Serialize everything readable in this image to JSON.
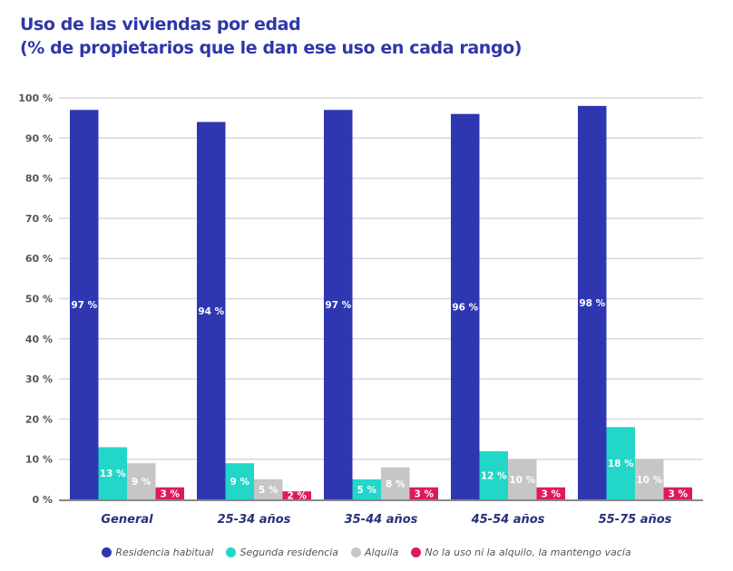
{
  "chart_data": {
    "type": "bar",
    "title": "Uso de las viviendas por edad",
    "subtitle": "(% de propietarios que le dan ese uso en cada rango)",
    "categories": [
      "General",
      "25-34 años",
      "35-44 años",
      "45-54 años",
      "55-75 años"
    ],
    "series": [
      {
        "name": "Residencia habitual",
        "color": "#2e37b0",
        "values": [
          97,
          94,
          97,
          96,
          98
        ]
      },
      {
        "name": "Segunda residencia",
        "color": "#22d6c8",
        "values": [
          13,
          9,
          5,
          12,
          18
        ]
      },
      {
        "name": "Alquila",
        "color": "#c6c6c6",
        "values": [
          9,
          5,
          8,
          10,
          10
        ]
      },
      {
        "name": "No la uso ni la alquilo, la mantengo vacía",
        "color": "#df1a5a",
        "values": [
          3,
          2,
          3,
          3,
          3
        ]
      }
    ],
    "ylim": [
      0,
      100
    ],
    "yticks": [
      "0 %",
      "10 %",
      "20 %",
      "30 %",
      "40 %",
      "50 %",
      "60 %",
      "70 %",
      "80 %",
      "90 %",
      "100 %"
    ],
    "value_suffix": " %",
    "grid": true,
    "legend": "bottom"
  }
}
